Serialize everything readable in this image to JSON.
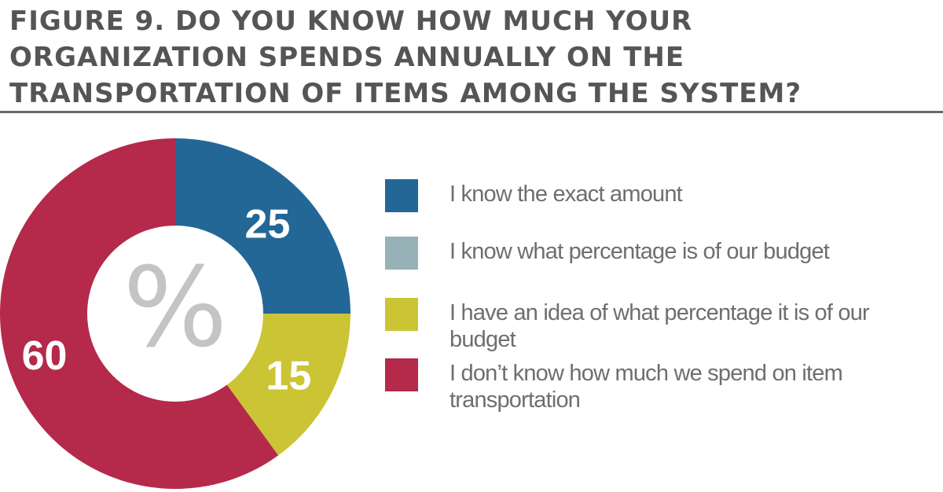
{
  "chart_data": {
    "type": "pie",
    "title": "Figure 9. Do you know how much your organization spends annually on the transportation of items among the system?",
    "center_label": "%",
    "categories": [
      "I know the exact amount",
      "I know what percentage is of our budget",
      "I have an idea of what percentage it is of our budget",
      "I don’t know how much we spend on item transportation"
    ],
    "values": [
      25,
      0,
      15,
      60
    ],
    "value_labels": [
      "25",
      "",
      "15",
      "60"
    ],
    "colors": [
      "#236797",
      "#97b2b6",
      "#cbc434",
      "#b5294a"
    ],
    "legend_position": "right",
    "legend": [
      {
        "label": "I know the exact amount",
        "color": "#236797"
      },
      {
        "label": "I know what percentage is of our budget",
        "color": "#97b2b6"
      },
      {
        "label": "I have an idea of what percentage it is of our budget",
        "color": "#cbc434"
      },
      {
        "label": "I don’t know how much we spend on item transportation",
        "color": "#b5294a"
      }
    ]
  }
}
